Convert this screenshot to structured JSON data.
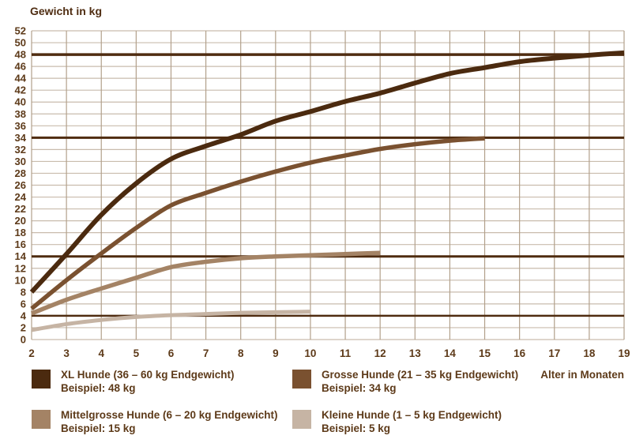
{
  "title": "Gewicht in kg",
  "x_axis_title": "Alter in Monaten",
  "chart_data": {
    "type": "line",
    "title": "",
    "ylabel": "Gewicht in kg",
    "xlabel": "Alter in Monaten",
    "xlim": [
      2,
      19
    ],
    "ylim": [
      0,
      52
    ],
    "x_ticks": [
      2,
      3,
      4,
      5,
      6,
      7,
      8,
      9,
      10,
      11,
      12,
      13,
      14,
      15,
      16,
      17,
      18,
      19
    ],
    "y_ticks": [
      0,
      2,
      4,
      6,
      8,
      10,
      12,
      14,
      16,
      18,
      20,
      22,
      24,
      26,
      28,
      30,
      32,
      34,
      36,
      38,
      40,
      42,
      44,
      46,
      48,
      50,
      52
    ],
    "grid": true,
    "legend_position": "bottom",
    "grid_color_vertical": "#b2a08b",
    "grid_color_horizontal": "#c9bcad",
    "reference_line_color": "#4f2c10",
    "text_color": "#5d3a19",
    "reference_lines": [
      {
        "value": 48,
        "width": 3.5
      },
      {
        "value": 34,
        "width": 3
      },
      {
        "value": 14,
        "width": 3
      },
      {
        "value": 4,
        "width": 2.5
      }
    ],
    "series": [
      {
        "name": "XL Hunde (36 – 60 kg Endgewicht)",
        "example": "Beispiel: 48 kg",
        "color": "#4b2a0f",
        "stroke_width": 6,
        "x": [
          2,
          3,
          4,
          5,
          6,
          7,
          8,
          9,
          10,
          11,
          12,
          13,
          14,
          15,
          16,
          17,
          18,
          19
        ],
        "values": [
          8,
          14.4,
          21,
          26.3,
          30.4,
          32.6,
          34.5,
          36.8,
          38.4,
          40.1,
          41.5,
          43.2,
          44.8,
          45.8,
          46.8,
          47.4,
          47.9,
          48.3
        ]
      },
      {
        "name": "Grosse Hunde (21 – 35 kg Endgewicht)",
        "example": "Beispiel: 34 kg",
        "color": "#7a5130",
        "stroke_width": 5.5,
        "x": [
          2,
          3,
          4,
          5,
          6,
          7,
          8,
          9,
          10,
          11,
          12,
          13,
          14,
          15
        ],
        "values": [
          5.2,
          10,
          14.5,
          18.8,
          22.6,
          24.7,
          26.6,
          28.3,
          29.8,
          31,
          32.1,
          32.9,
          33.5,
          33.9
        ]
      },
      {
        "name": "Mittelgrosse Hunde (6 – 20 kg Endgewicht)",
        "example": "Beispiel: 15 kg",
        "color": "#a48365",
        "stroke_width": 5.5,
        "x": [
          2,
          3,
          4,
          5,
          6,
          7,
          8,
          9,
          10,
          11,
          12
        ],
        "values": [
          4.4,
          6.7,
          8.6,
          10.4,
          12.2,
          13.1,
          13.7,
          14,
          14.2,
          14.4,
          14.6
        ]
      },
      {
        "name": "Kleine Hunde (1 – 5 kg Endgewicht)",
        "example": "Beispiel: 5 kg",
        "color": "#c6b4a4",
        "stroke_width": 5,
        "x": [
          2,
          3,
          4,
          5,
          6,
          7,
          8,
          9,
          10
        ],
        "values": [
          1.6,
          2.6,
          3.3,
          3.8,
          4.1,
          4.3,
          4.5,
          4.6,
          4.7
        ]
      }
    ]
  }
}
